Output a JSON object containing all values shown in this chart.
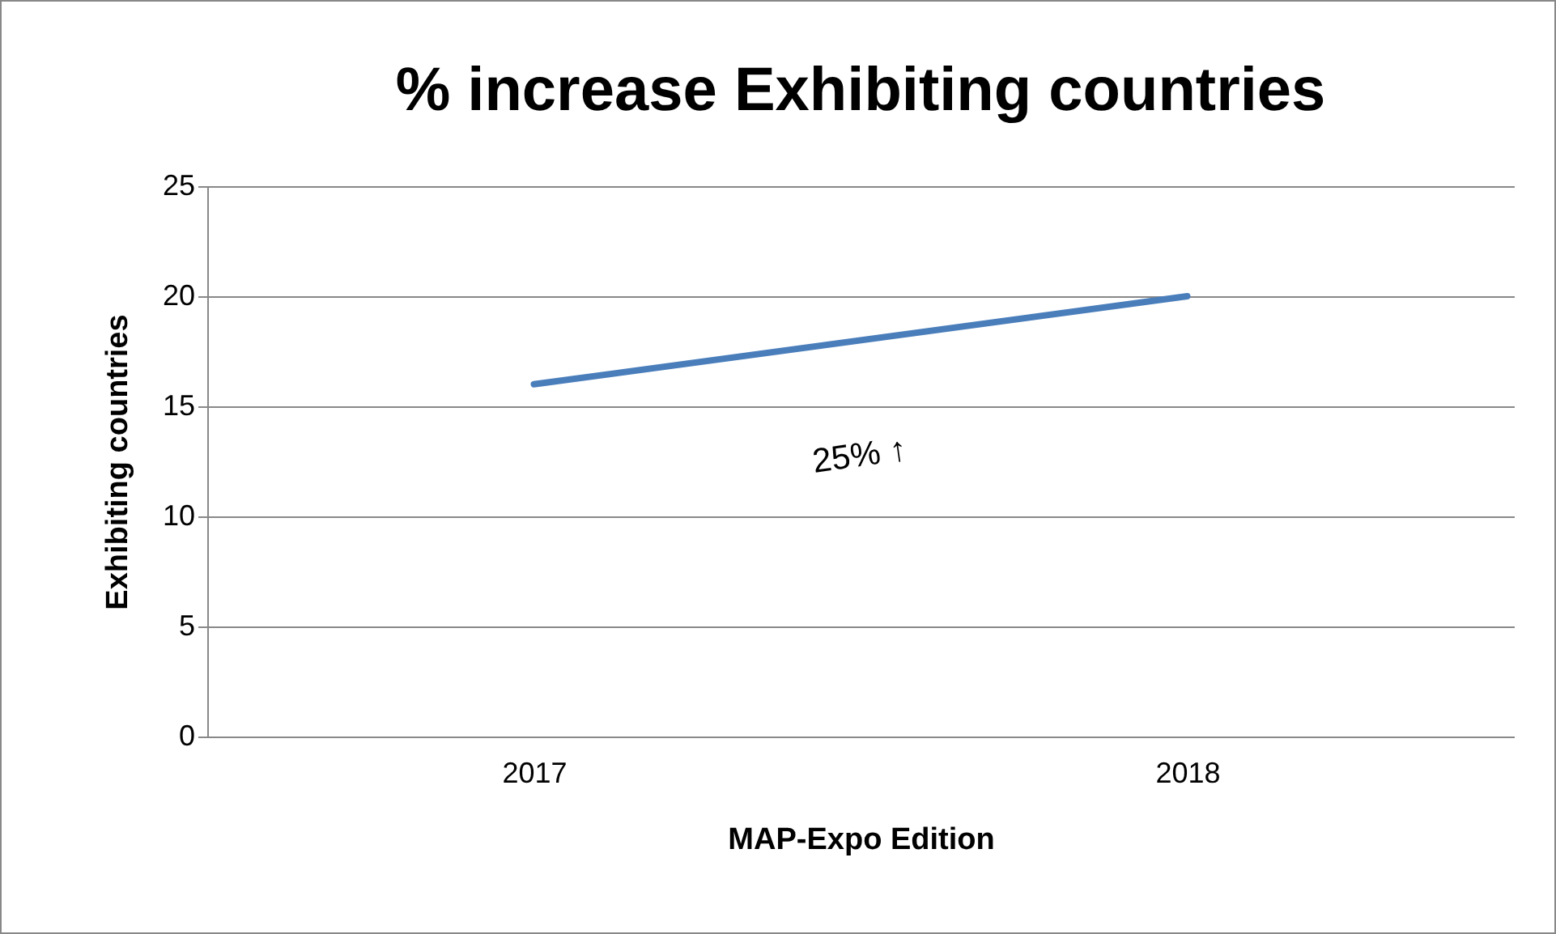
{
  "chart_data": {
    "type": "line",
    "title": "% increase Exhibiting countries",
    "xlabel": "MAP-Expo Edition",
    "ylabel": "Exhibiting countries",
    "categories": [
      "2017",
      "2018"
    ],
    "series": [
      {
        "color": "#4a7ebb",
        "values": [
          16,
          20
        ]
      }
    ],
    "ylim": [
      0,
      25
    ],
    "yticks": [
      0,
      5,
      10,
      15,
      20,
      25
    ],
    "grid": "y",
    "annotations": [
      "25% ↑"
    ]
  }
}
